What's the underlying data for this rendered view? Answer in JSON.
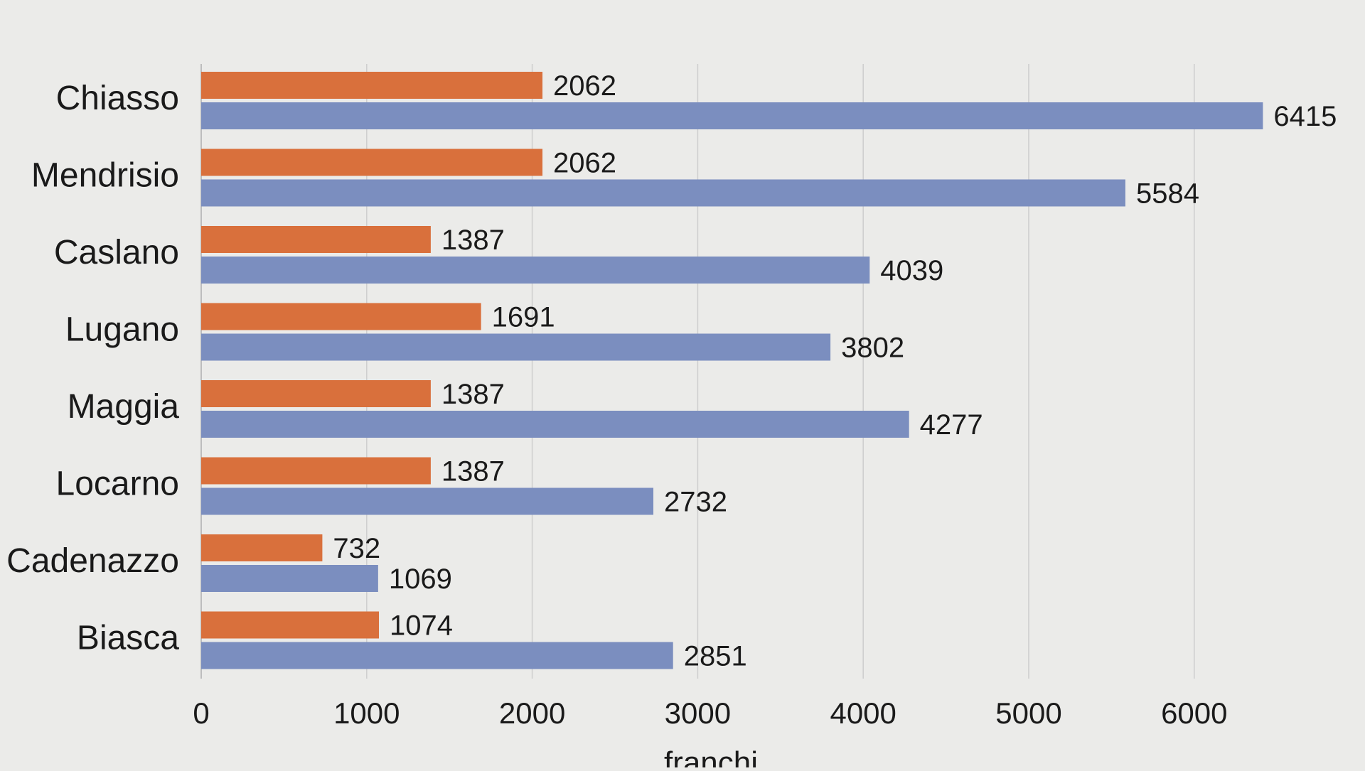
{
  "chart_data": {
    "type": "bar",
    "orientation": "horizontal",
    "categories": [
      "Chiasso",
      "Mendrisio",
      "Caslano",
      "Lugano",
      "Maggia",
      "Locarno",
      "Cadenazzo",
      "Biasca"
    ],
    "series": [
      {
        "values": [
          2062,
          2062,
          1387,
          1691,
          1387,
          1387,
          732,
          1074
        ],
        "color": "#d9703c"
      },
      {
        "values": [
          6415,
          5584,
          4039,
          3802,
          4277,
          2732,
          1069,
          2851
        ],
        "color": "#7b8ebf"
      }
    ],
    "xlim": [
      0,
      7000
    ],
    "xticks": [
      0,
      1000,
      2000,
      3000,
      4000,
      5000,
      6000
    ],
    "xlabel": "franchi",
    "grid": "vertical",
    "legend": "none"
  },
  "colors": {
    "background": "#ebebe9",
    "gridline": "#cfcfcf",
    "axis": "#bdbdbd",
    "text": "#1a1a1a"
  }
}
